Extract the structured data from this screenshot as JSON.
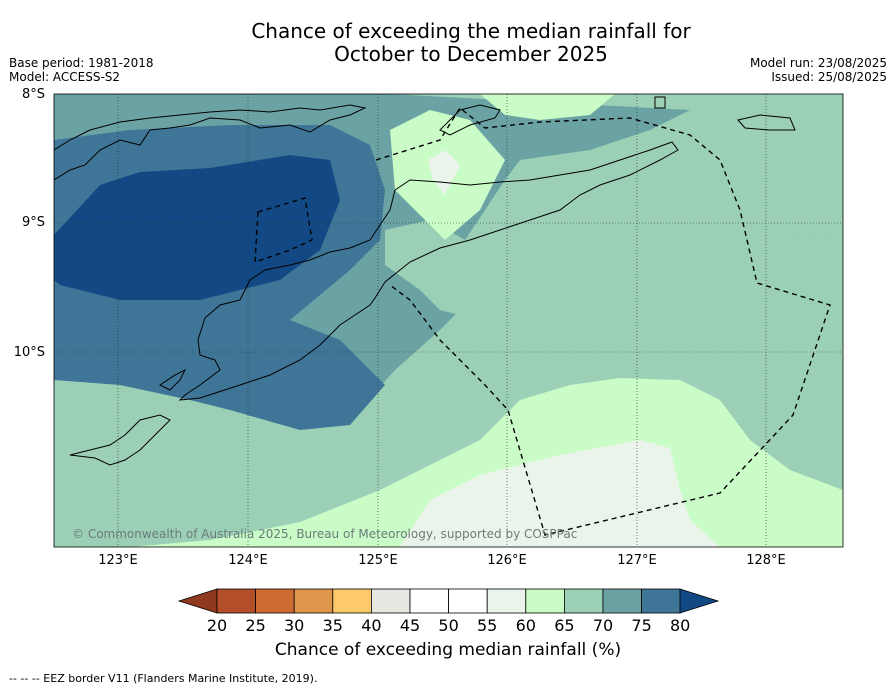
{
  "title_line1": "Chance of exceeding the median rainfall for",
  "title_line2": "October to December 2025",
  "meta_left": {
    "base_period": "Base period: 1981-2018",
    "model": "Model: ACCESS-S2"
  },
  "meta_right": {
    "model_run": "Model run: 23/08/2025",
    "issued": "Issued: 25/08/2025"
  },
  "map": {
    "lat_labels": [
      "8°S",
      "9°S",
      "10°S"
    ],
    "lon_labels": [
      "123°E",
      "124°E",
      "125°E",
      "126°E",
      "127°E",
      "128°E"
    ],
    "copyright": "© Commonwealth of Australia 2025, Bureau of Meteorology, supported by COSPPac"
  },
  "colorbar": {
    "ticks": [
      "20",
      "25",
      "30",
      "35",
      "40",
      "45",
      "50",
      "55",
      "60",
      "65",
      "70",
      "75",
      "80"
    ],
    "colors": [
      "#8f3a1e",
      "#b24e2a",
      "#cd6b33",
      "#e1964e",
      "#fdca6a",
      "#e8e8e3",
      "#ffffff",
      "#ffffff",
      "#ebf4ea",
      "#c9fcc6",
      "#9bd0b7",
      "#6ba3a4",
      "#3f7697",
      "#124985"
    ],
    "label": "Chance of exceeding median rainfall (%)"
  },
  "footnote": "--  --  -- EEZ border V11 (Flanders Marine Institute, 2019).",
  "colors": {
    "p55_60": "#ebf4ea",
    "p60_65": "#c9fcc6",
    "p65_70": "#9bd0b7",
    "p70_75": "#6ba3a4",
    "p75_80": "#3f7697",
    "p80": "#124985"
  }
}
